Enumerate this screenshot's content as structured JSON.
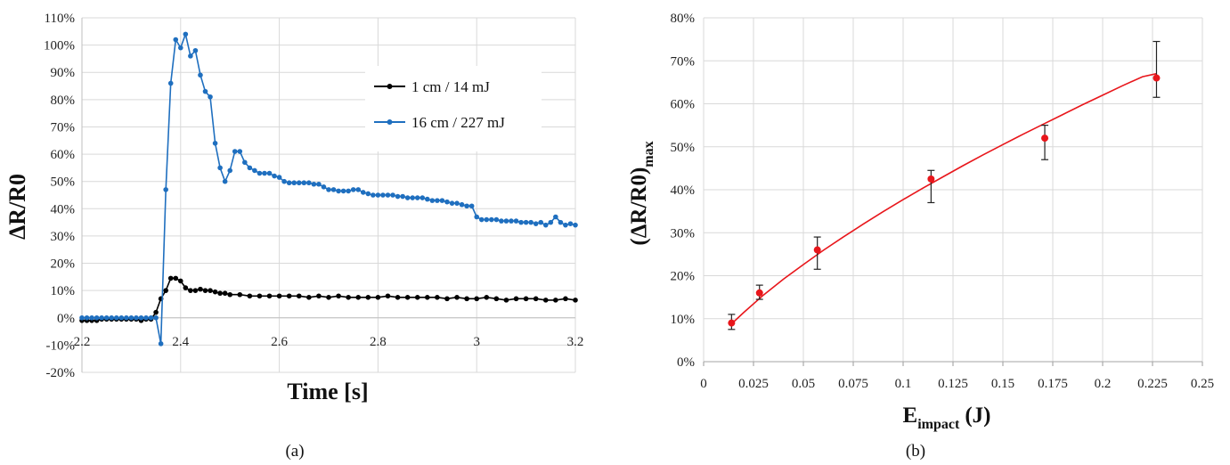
{
  "figure": {
    "caption_a": "(a)",
    "caption_b": "(b)"
  },
  "chart_data": [
    {
      "type": "line",
      "panel": "a",
      "xlabel": "Time [s]",
      "ylabel": "ΔR/R0",
      "xlim": [
        2.2,
        3.2
      ],
      "ylim": [
        -0.2,
        1.1
      ],
      "x_ticks": [
        "2.2",
        "2.4",
        "2.6",
        "2.8",
        "3",
        "3.2"
      ],
      "y_ticks": [
        "-20%",
        "-10%",
        "0%",
        "10%",
        "20%",
        "30%",
        "40%",
        "50%",
        "60%",
        "70%",
        "80%",
        "90%",
        "100%",
        "110%"
      ],
      "grid": "both",
      "legend_position": "top-right",
      "series": [
        {
          "name": "1 cm / 14 mJ",
          "color": "#000000",
          "x": [
            2.2,
            2.21,
            2.22,
            2.23,
            2.24,
            2.25,
            2.26,
            2.27,
            2.28,
            2.29,
            2.3,
            2.31,
            2.32,
            2.33,
            2.34,
            2.35,
            2.36,
            2.37,
            2.38,
            2.39,
            2.4,
            2.41,
            2.42,
            2.43,
            2.44,
            2.45,
            2.46,
            2.47,
            2.48,
            2.49,
            2.5,
            2.52,
            2.54,
            2.56,
            2.58,
            2.6,
            2.62,
            2.64,
            2.66,
            2.68,
            2.7,
            2.72,
            2.74,
            2.76,
            2.78,
            2.8,
            2.82,
            2.84,
            2.86,
            2.88,
            2.9,
            2.92,
            2.94,
            2.96,
            2.98,
            3.0,
            3.02,
            3.04,
            3.06,
            3.08,
            3.1,
            3.12,
            3.14,
            3.16,
            3.18,
            3.2
          ],
          "y": [
            -0.01,
            -0.01,
            -0.01,
            -0.01,
            -0.005,
            -0.005,
            -0.005,
            -0.005,
            -0.005,
            -0.005,
            -0.005,
            -0.005,
            -0.01,
            -0.005,
            -0.005,
            0.02,
            0.07,
            0.1,
            0.145,
            0.145,
            0.135,
            0.11,
            0.1,
            0.1,
            0.105,
            0.1,
            0.1,
            0.095,
            0.09,
            0.09,
            0.085,
            0.085,
            0.08,
            0.08,
            0.08,
            0.08,
            0.08,
            0.08,
            0.075,
            0.08,
            0.075,
            0.08,
            0.075,
            0.075,
            0.075,
            0.075,
            0.08,
            0.075,
            0.075,
            0.075,
            0.075,
            0.075,
            0.07,
            0.075,
            0.07,
            0.07,
            0.075,
            0.07,
            0.065,
            0.07,
            0.07,
            0.07,
            0.065,
            0.065,
            0.07,
            0.065
          ]
        },
        {
          "name": "16 cm / 227 mJ",
          "color": "#1f6fbf",
          "x": [
            2.2,
            2.21,
            2.22,
            2.23,
            2.24,
            2.25,
            2.26,
            2.27,
            2.28,
            2.29,
            2.3,
            2.31,
            2.32,
            2.33,
            2.34,
            2.35,
            2.36,
            2.37,
            2.38,
            2.39,
            2.4,
            2.41,
            2.42,
            2.43,
            2.44,
            2.45,
            2.46,
            2.47,
            2.48,
            2.49,
            2.5,
            2.51,
            2.52,
            2.53,
            2.54,
            2.55,
            2.56,
            2.57,
            2.58,
            2.59,
            2.6,
            2.61,
            2.62,
            2.63,
            2.64,
            2.65,
            2.66,
            2.67,
            2.68,
            2.69,
            2.7,
            2.71,
            2.72,
            2.73,
            2.74,
            2.75,
            2.76,
            2.77,
            2.78,
            2.79,
            2.8,
            2.81,
            2.82,
            2.83,
            2.84,
            2.85,
            2.86,
            2.87,
            2.88,
            2.89,
            2.9,
            2.91,
            2.92,
            2.93,
            2.94,
            2.95,
            2.96,
            2.97,
            2.98,
            2.99,
            3.0,
            3.01,
            3.02,
            3.03,
            3.04,
            3.05,
            3.06,
            3.07,
            3.08,
            3.09,
            3.1,
            3.11,
            3.12,
            3.13,
            3.14,
            3.15,
            3.16,
            3.17,
            3.18,
            3.19,
            3.2
          ],
          "y": [
            0.0,
            0.0,
            0.0,
            0.0,
            0.0,
            0.0,
            0.0,
            0.0,
            0.0,
            0.0,
            0.0,
            0.0,
            0.0,
            0.0,
            0.0,
            0.0,
            -0.095,
            0.47,
            0.86,
            1.02,
            0.99,
            1.04,
            0.96,
            0.98,
            0.89,
            0.83,
            0.81,
            0.64,
            0.55,
            0.5,
            0.54,
            0.61,
            0.61,
            0.57,
            0.55,
            0.54,
            0.53,
            0.53,
            0.53,
            0.52,
            0.515,
            0.5,
            0.495,
            0.495,
            0.495,
            0.495,
            0.495,
            0.49,
            0.49,
            0.48,
            0.47,
            0.47,
            0.465,
            0.465,
            0.465,
            0.47,
            0.47,
            0.46,
            0.455,
            0.45,
            0.45,
            0.45,
            0.45,
            0.45,
            0.445,
            0.445,
            0.44,
            0.44,
            0.44,
            0.44,
            0.435,
            0.43,
            0.43,
            0.43,
            0.425,
            0.42,
            0.42,
            0.415,
            0.41,
            0.41,
            0.37,
            0.36,
            0.36,
            0.36,
            0.36,
            0.355,
            0.355,
            0.355,
            0.355,
            0.35,
            0.35,
            0.35,
            0.345,
            0.35,
            0.34,
            0.35,
            0.37,
            0.35,
            0.34,
            0.345,
            0.34
          ]
        }
      ]
    },
    {
      "type": "scatter",
      "panel": "b",
      "xlabel": "E",
      "xlabel_sub": "impact",
      "xlabel_unit": "(J)",
      "ylabel": "(ΔR/R0)",
      "ylabel_sub": "max",
      "xlim": [
        0,
        0.25
      ],
      "ylim": [
        0,
        0.8
      ],
      "x_ticks": [
        "0",
        "0.025",
        "0.05",
        "0.075",
        "0.1",
        "0.125",
        "0.15",
        "0.175",
        "0.2",
        "0.225",
        "0.25"
      ],
      "y_ticks": [
        "0%",
        "10%",
        "20%",
        "30%",
        "40%",
        "50%",
        "60%",
        "70%",
        "80%"
      ],
      "grid": "both",
      "points": {
        "color": "#e8161b",
        "x": [
          0.014,
          0.028,
          0.057,
          0.114,
          0.171,
          0.227
        ],
        "y": [
          0.09,
          0.16,
          0.26,
          0.425,
          0.52,
          0.66
        ],
        "err_low": [
          0.075,
          0.145,
          0.215,
          0.37,
          0.47,
          0.615
        ],
        "err_high": [
          0.11,
          0.178,
          0.29,
          0.445,
          0.55,
          0.745
        ]
      },
      "fit": {
        "color": "#e8161b",
        "x": [
          0.014,
          0.02,
          0.03,
          0.04,
          0.05,
          0.06,
          0.07,
          0.08,
          0.09,
          0.1,
          0.11,
          0.12,
          0.13,
          0.14,
          0.15,
          0.16,
          0.17,
          0.18,
          0.19,
          0.2,
          0.21,
          0.22,
          0.227
        ],
        "y": [
          0.088,
          0.114,
          0.155,
          0.192,
          0.226,
          0.259,
          0.29,
          0.32,
          0.349,
          0.377,
          0.404,
          0.43,
          0.456,
          0.481,
          0.505,
          0.529,
          0.552,
          0.575,
          0.598,
          0.62,
          0.642,
          0.663,
          0.67
        ]
      }
    }
  ]
}
